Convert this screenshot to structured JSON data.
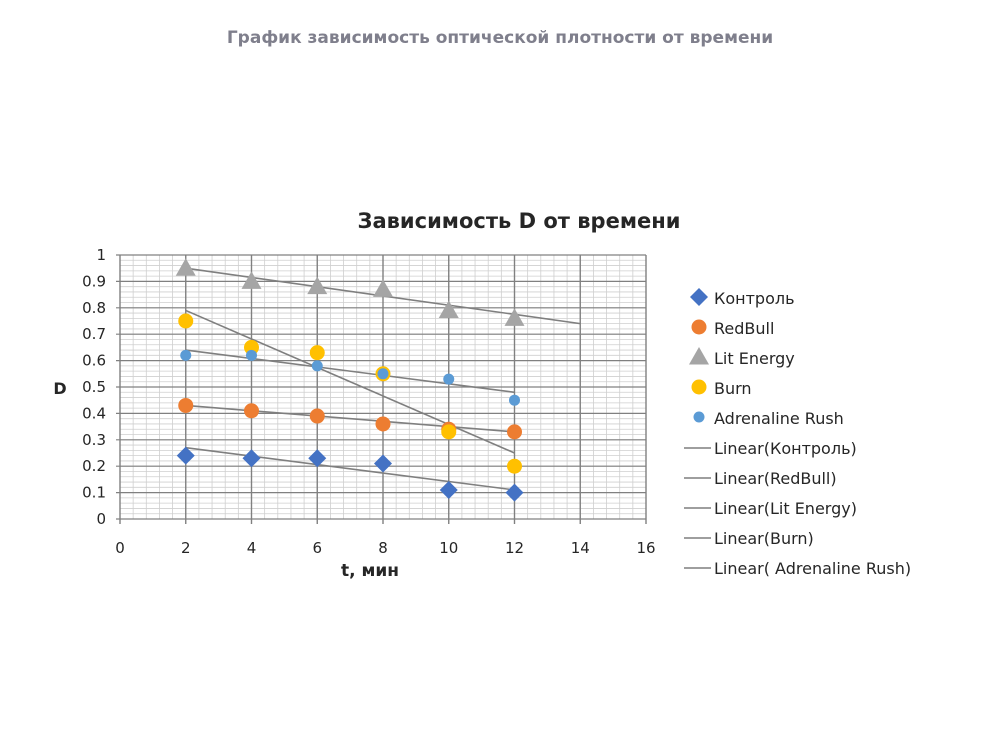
{
  "page": {
    "title": "График зависимость оптической плотности от времени"
  },
  "colors": {
    "kontrol": "#4472c4",
    "redbull": "#ed7d31",
    "lit_energy": "#a5a5a5",
    "burn": "#ffc000",
    "adrenaline": "#5b9bd5",
    "trendline": "#7f7f7f",
    "major_grid": "#808080",
    "minor_grid": "#cfcfcf"
  },
  "chart_data": {
    "type": "scatter",
    "title": "Зависимость D от времени",
    "xlabel": "t, мин",
    "ylabel": "D",
    "xlim": [
      0,
      16
    ],
    "ylim": [
      0,
      1
    ],
    "x_ticks": [
      "0",
      "2",
      "4",
      "6",
      "8",
      "10",
      "12",
      "14",
      "16"
    ],
    "y_ticks": [
      "0",
      "0.1",
      "0.2",
      "0.3",
      "0.4",
      "0.5",
      "0.6",
      "0.7",
      "0.8",
      "0.9",
      "1"
    ],
    "grid": true,
    "legend_position": "right",
    "series": [
      {
        "name": "Контроль",
        "marker": "diamond",
        "color_key": "kontrol",
        "x": [
          2,
          4,
          6,
          8,
          10,
          12
        ],
        "y": [
          0.24,
          0.23,
          0.23,
          0.21,
          0.11,
          0.1
        ]
      },
      {
        "name": "RedBull",
        "marker": "circle",
        "color_key": "redbull",
        "x": [
          2,
          4,
          6,
          8,
          10,
          12
        ],
        "y": [
          0.43,
          0.41,
          0.39,
          0.36,
          0.34,
          0.33
        ]
      },
      {
        "name": "Lit Energy",
        "marker": "triangle",
        "color_key": "lit_energy",
        "x": [
          2,
          4,
          6,
          8,
          10,
          12
        ],
        "y": [
          0.95,
          0.9,
          0.88,
          0.87,
          0.79,
          0.76
        ]
      },
      {
        "name": "Burn",
        "marker": "circle",
        "color_key": "burn",
        "x": [
          2,
          4,
          6,
          8,
          10,
          12
        ],
        "y": [
          0.75,
          0.65,
          0.63,
          0.55,
          0.33,
          0.2
        ]
      },
      {
        "name": " Adrenaline Rush",
        "marker": "small-circle",
        "color_key": "adrenaline",
        "x": [
          2,
          4,
          6,
          8,
          10,
          12
        ],
        "y": [
          0.62,
          0.62,
          0.58,
          0.55,
          0.53,
          0.45
        ]
      }
    ],
    "trendlines": [
      {
        "name": "Linear(Контроль)",
        "x": [
          2,
          12
        ],
        "y": [
          0.27,
          0.11
        ]
      },
      {
        "name": "Linear(RedBull)",
        "x": [
          2,
          12
        ],
        "y": [
          0.43,
          0.33
        ]
      },
      {
        "name": "Linear(Lit Energy)",
        "x": [
          2,
          14
        ],
        "y": [
          0.95,
          0.74
        ]
      },
      {
        "name": "Linear(Burn)",
        "x": [
          2,
          12
        ],
        "y": [
          0.79,
          0.25
        ]
      },
      {
        "name": "Linear( Adrenaline Rush)",
        "x": [
          2,
          12
        ],
        "y": [
          0.64,
          0.48
        ]
      }
    ]
  }
}
